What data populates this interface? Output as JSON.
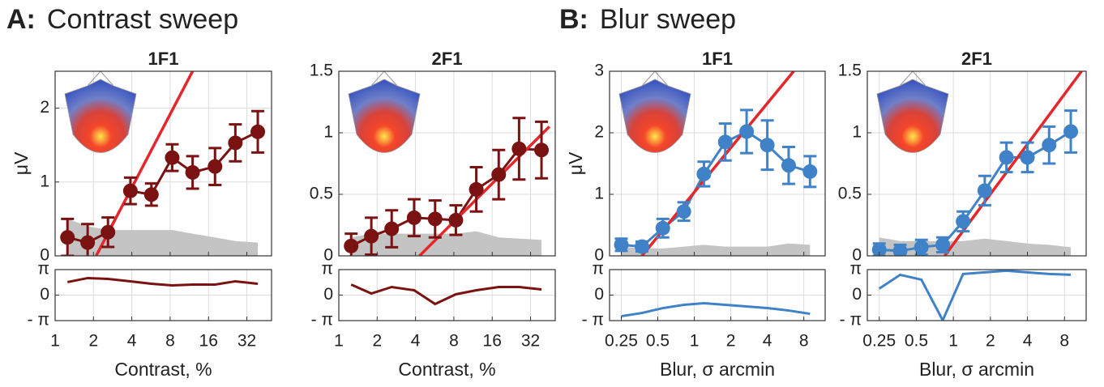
{
  "headings": [
    {
      "label": "A:",
      "title": "Contrast sweep"
    },
    {
      "label": "B:",
      "title": "Blur sweep"
    }
  ],
  "chart_data": [
    {
      "type": "errorbar",
      "title": "1F1",
      "ylabel": "μV",
      "log_x": true,
      "grid": true,
      "x": [
        1.25,
        1.8,
        2.6,
        3.9,
        5.7,
        8.3,
        12,
        18,
        26,
        39
      ],
      "values": [
        0.25,
        0.18,
        0.32,
        0.88,
        0.83,
        1.33,
        1.13,
        1.21,
        1.53,
        1.68
      ],
      "errors": [
        0.25,
        0.25,
        0.2,
        0.18,
        0.15,
        0.18,
        0.22,
        0.25,
        0.25,
        0.28
      ],
      "noise": [
        0.5,
        0.4,
        0.35,
        0.35,
        0.35,
        0.35,
        0.3,
        0.25,
        0.2,
        0.18
      ],
      "fit": {
        "x": [
          2.1,
          12
        ],
        "y": [
          0,
          2.5
        ]
      },
      "color": "#7a1212",
      "fit_color": "#e5262b",
      "noise_color": "#c4c4c4",
      "xlim": [
        1,
        50
      ],
      "xticks": [
        1,
        2,
        4,
        8,
        16,
        32
      ],
      "ylim": [
        0,
        2.5
      ],
      "yticks": [
        0,
        1,
        2
      ]
    },
    {
      "type": "line",
      "log_x": true,
      "grid": true,
      "xlabel": "Contrast, %",
      "x": [
        1.25,
        1.8,
        2.6,
        3.9,
        5.7,
        8.3,
        12,
        18,
        26,
        39
      ],
      "values": [
        1.6,
        2.1,
        2.0,
        1.7,
        1.4,
        1.2,
        1.3,
        1.3,
        1.7,
        1.4
      ],
      "color": "#7a1212",
      "xlim": [
        1,
        50
      ],
      "xticks": [
        1,
        2,
        4,
        8,
        16,
        32
      ],
      "ylim": [
        -3.14159,
        3.14159
      ],
      "yticks": [
        {
          "value": 3.14159,
          "label": "π"
        },
        0,
        {
          "value": -3.14159,
          "label": "- π"
        }
      ]
    },
    {
      "type": "errorbar",
      "title": "2F1",
      "log_x": true,
      "grid": true,
      "x": [
        1.25,
        1.8,
        2.6,
        3.9,
        5.7,
        8.3,
        12,
        18,
        26,
        39
      ],
      "values": [
        0.08,
        0.16,
        0.22,
        0.31,
        0.3,
        0.29,
        0.54,
        0.66,
        0.87,
        0.86
      ],
      "errors": [
        0.1,
        0.15,
        0.15,
        0.15,
        0.15,
        0.12,
        0.18,
        0.2,
        0.25,
        0.23
      ],
      "noise": [
        0.15,
        0.18,
        0.18,
        0.18,
        0.18,
        0.18,
        0.2,
        0.15,
        0.14,
        0.13
      ],
      "fit": {
        "x": [
          4.3,
          45
        ],
        "y": [
          0,
          1.05
        ]
      },
      "color": "#7a1212",
      "fit_color": "#e5262b",
      "noise_color": "#c4c4c4",
      "xlim": [
        1,
        50
      ],
      "xticks": [
        1,
        2,
        4,
        8,
        16,
        32
      ],
      "ylim": [
        0,
        1.5
      ],
      "yticks": [
        0,
        0.5,
        1,
        1.5
      ]
    },
    {
      "type": "line",
      "log_x": true,
      "grid": true,
      "xlabel": "Contrast, %",
      "x": [
        1.25,
        1.8,
        2.6,
        3.9,
        5.7,
        8.3,
        12,
        18,
        26,
        39
      ],
      "values": [
        1.3,
        0.2,
        1.0,
        0.6,
        -1.1,
        0.1,
        0.6,
        1.0,
        1.0,
        0.7
      ],
      "color": "#7a1212",
      "xlim": [
        1,
        50
      ],
      "xticks": [
        1,
        2,
        4,
        8,
        16,
        32
      ],
      "ylim": [
        -3.14159,
        3.14159
      ],
      "yticks": [
        {
          "value": 3.14159,
          "label": "π"
        },
        0,
        {
          "value": -3.14159,
          "label": "- π"
        }
      ]
    },
    {
      "type": "errorbar",
      "title": "1F1",
      "ylabel": "μV",
      "log_x": true,
      "grid": true,
      "x": [
        0.25,
        0.37,
        0.55,
        0.82,
        1.2,
        1.8,
        2.7,
        4,
        6,
        9
      ],
      "values": [
        0.18,
        0.15,
        0.45,
        0.72,
        1.33,
        1.85,
        2.02,
        1.8,
        1.47,
        1.37
      ],
      "errors": [
        0.1,
        0.08,
        0.15,
        0.15,
        0.2,
        0.3,
        0.35,
        0.4,
        0.3,
        0.25
      ],
      "noise": [
        0.15,
        0.12,
        0.12,
        0.15,
        0.18,
        0.15,
        0.15,
        0.15,
        0.2,
        0.18
      ],
      "fit": {
        "x": [
          0.37,
          6.6
        ],
        "y": [
          0,
          3
        ]
      },
      "color": "#3f82c8",
      "fit_color": "#e5262b",
      "noise_color": "#c4c4c4",
      "xlim": [
        0.2,
        12
      ],
      "xticks": [
        0.25,
        0.5,
        1,
        2,
        4,
        8
      ],
      "ylim": [
        0,
        3
      ],
      "yticks": [
        0,
        1,
        2,
        3
      ]
    },
    {
      "type": "line",
      "log_x": true,
      "grid": true,
      "xlabel": "Blur, σ arcmin",
      "x": [
        0.25,
        0.37,
        0.55,
        0.82,
        1.2,
        1.8,
        2.7,
        4,
        6,
        9
      ],
      "values": [
        -2.6,
        -2.2,
        -1.6,
        -1.2,
        -1.0,
        -1.2,
        -1.4,
        -1.6,
        -1.9,
        -2.3
      ],
      "color": "#3f82c8",
      "xlim": [
        0.2,
        12
      ],
      "xticks": [
        0.25,
        0.5,
        1,
        2,
        4,
        8
      ],
      "ylim": [
        -3.14159,
        3.14159
      ],
      "yticks": [
        {
          "value": 3.14159,
          "label": "π"
        },
        0,
        {
          "value": -3.14159,
          "label": "- π"
        }
      ]
    },
    {
      "type": "errorbar",
      "title": "2F1",
      "log_x": true,
      "grid": true,
      "x": [
        0.25,
        0.37,
        0.55,
        0.82,
        1.2,
        1.8,
        2.7,
        4,
        6,
        9
      ],
      "values": [
        0.05,
        0.04,
        0.07,
        0.09,
        0.28,
        0.53,
        0.8,
        0.8,
        0.9,
        1.01
      ],
      "errors": [
        0.05,
        0.05,
        0.06,
        0.06,
        0.08,
        0.12,
        0.12,
        0.12,
        0.15,
        0.17
      ],
      "noise": [
        0.15,
        0.12,
        0.12,
        0.12,
        0.12,
        0.14,
        0.12,
        0.1,
        0.09,
        0.07
      ],
      "fit": {
        "x": [
          0.85,
          11
        ],
        "y": [
          0,
          1.5
        ]
      },
      "color": "#3f82c8",
      "fit_color": "#e5262b",
      "noise_color": "#c4c4c4",
      "xlim": [
        0.2,
        12
      ],
      "xticks": [
        0.25,
        0.5,
        1,
        2,
        4,
        8
      ],
      "ylim": [
        0,
        1.5
      ],
      "yticks": [
        0,
        0.5,
        1,
        1.5
      ]
    },
    {
      "type": "line",
      "log_x": true,
      "grid": true,
      "xlabel": "Blur, σ arcmin",
      "x": [
        0.25,
        0.37,
        0.55,
        0.82,
        1.2,
        1.8,
        2.7,
        4,
        6,
        9
      ],
      "values": [
        0.8,
        2.5,
        1.9,
        -3.1,
        2.6,
        2.8,
        3.0,
        2.8,
        2.6,
        2.5
      ],
      "color": "#3f82c8",
      "xlim": [
        0.2,
        12
      ],
      "xticks": [
        0.25,
        0.5,
        1,
        2,
        4,
        8
      ],
      "ylim": [
        -3.14159,
        3.14159
      ],
      "yticks": [
        {
          "value": 3.14159,
          "label": "π"
        },
        0,
        {
          "value": -3.14159,
          "label": "- π"
        }
      ]
    }
  ]
}
